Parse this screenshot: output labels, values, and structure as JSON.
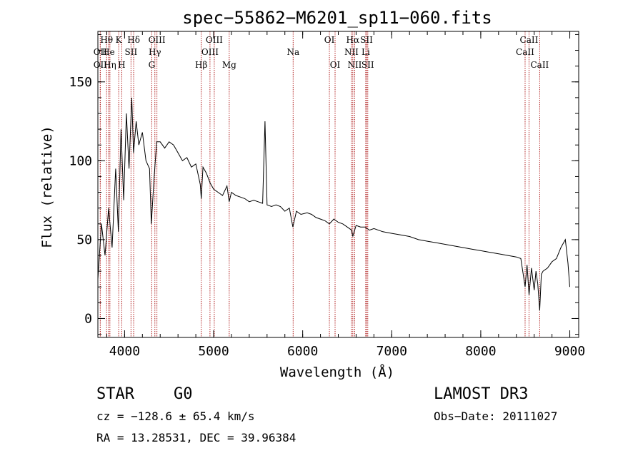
{
  "chart_data": {
    "type": "line",
    "title": "spec−55862−M6201_sp11−060.fits",
    "xlabel": "Wavelength (Å)",
    "ylabel": "Flux (relative)",
    "xlim": [
      3700,
      9100
    ],
    "ylim": [
      -12,
      182
    ],
    "x_ticks": [
      4000,
      5000,
      6000,
      7000,
      8000,
      9000
    ],
    "x_tick_labels": [
      "4000",
      "5000",
      "6000",
      "7000",
      "8000",
      "9000"
    ],
    "y_ticks": [
      0,
      50,
      100,
      150
    ],
    "y_tick_labels": [
      "0",
      "50",
      "100",
      "150"
    ],
    "series": [
      {
        "name": "flux",
        "x": [
          3700,
          3740,
          3780,
          3820,
          3860,
          3900,
          3930,
          3960,
          3990,
          4020,
          4050,
          4080,
          4100,
          4130,
          4160,
          4200,
          4240,
          4280,
          4300,
          4330,
          4360,
          4400,
          4450,
          4500,
          4550,
          4600,
          4650,
          4700,
          4750,
          4800,
          4850,
          4861,
          4880,
          4920,
          4960,
          5000,
          5050,
          5100,
          5150,
          5175,
          5200,
          5250,
          5300,
          5350,
          5400,
          5450,
          5500,
          5550,
          5577,
          5600,
          5650,
          5700,
          5750,
          5800,
          5850,
          5890,
          5930,
          5980,
          6050,
          6100,
          6150,
          6200,
          6250,
          6300,
          6350,
          6400,
          6450,
          6500,
          6550,
          6563,
          6600,
          6650,
          6700,
          6750,
          6800,
          6900,
          7000,
          7100,
          7200,
          7300,
          7400,
          7500,
          7600,
          7700,
          7800,
          7900,
          8000,
          8100,
          8200,
          8300,
          8400,
          8450,
          8498,
          8520,
          8542,
          8570,
          8600,
          8620,
          8640,
          8662,
          8680,
          8700,
          8750,
          8800,
          8850,
          8900,
          8950,
          8980,
          9000
        ],
        "values": [
          25,
          60,
          40,
          70,
          45,
          95,
          55,
          120,
          75,
          130,
          95,
          140,
          105,
          125,
          110,
          118,
          100,
          95,
          60,
          88,
          112,
          112,
          108,
          112,
          110,
          105,
          100,
          102,
          96,
          98,
          85,
          76,
          96,
          92,
          86,
          82,
          80,
          78,
          84,
          74,
          80,
          78,
          77,
          76,
          74,
          75,
          74,
          73,
          125,
          72,
          71,
          72,
          71,
          68,
          70,
          58,
          68,
          66,
          67,
          66,
          64,
          63,
          62,
          60,
          63,
          61,
          60,
          58,
          56,
          52,
          59,
          58,
          58,
          56,
          57,
          55,
          54,
          53,
          52,
          50,
          49,
          48,
          47,
          46,
          45,
          44,
          43,
          42,
          41,
          40,
          39,
          38,
          20,
          34,
          15,
          32,
          18,
          30,
          22,
          5,
          28,
          30,
          32,
          36,
          38,
          45,
          50,
          35,
          20
        ]
      }
    ],
    "lines": [
      {
        "name": "OII",
        "wavelength": 3727,
        "row": 1
      },
      {
        "name": "Hθ",
        "wavelength": 3798,
        "row": 0
      },
      {
        "name": "OII",
        "wavelength": 3727,
        "row": 2
      },
      {
        "name": "He",
        "wavelength": 3820,
        "row": 1
      },
      {
        "name": "Hη",
        "wavelength": 3835,
        "row": 2
      },
      {
        "name": "K",
        "wavelength": 3934,
        "row": 0
      },
      {
        "name": "H",
        "wavelength": 3968,
        "row": 2
      },
      {
        "name": "SII",
        "wavelength": 4072,
        "row": 1
      },
      {
        "name": "Hδ",
        "wavelength": 4102,
        "row": 0
      },
      {
        "name": "OIII",
        "wavelength": 4363,
        "row": 0
      },
      {
        "name": "Hγ",
        "wavelength": 4340,
        "row": 1
      },
      {
        "name": "G",
        "wavelength": 4305,
        "row": 2
      },
      {
        "name": "Hβ",
        "wavelength": 4861,
        "row": 2
      },
      {
        "name": "OIII",
        "wavelength": 5007,
        "row": 0
      },
      {
        "name": "OIII",
        "wavelength": 4959,
        "row": 1
      },
      {
        "name": "Mg",
        "wavelength": 5175,
        "row": 2
      },
      {
        "name": "Na",
        "wavelength": 5893,
        "row": 1
      },
      {
        "name": "OI",
        "wavelength": 6300,
        "row": 0
      },
      {
        "name": "OI",
        "wavelength": 6364,
        "row": 2
      },
      {
        "name": "Hα",
        "wavelength": 6563,
        "row": 0
      },
      {
        "name": "NII",
        "wavelength": 6548,
        "row": 1
      },
      {
        "name": "NII",
        "wavelength": 6584,
        "row": 2
      },
      {
        "name": "SII",
        "wavelength": 6717,
        "row": 0
      },
      {
        "name": "Li",
        "wavelength": 6708,
        "row": 1
      },
      {
        "name": "SII",
        "wavelength": 6731,
        "row": 2
      },
      {
        "name": "CaII",
        "wavelength": 8542,
        "row": 0
      },
      {
        "name": "CaII",
        "wavelength": 8498,
        "row": 1
      },
      {
        "name": "CaII",
        "wavelength": 8662,
        "row": 2
      }
    ],
    "line_color": "#b22222"
  },
  "info": {
    "class_label": "STAR",
    "subclass": "G0",
    "survey": "LAMOST DR3",
    "cz": "cz = −128.6 ± 65.4 km/s",
    "obs_date": "Obs−Date: 20111027",
    "coords": "RA =  13.28531, DEC =  39.96384"
  }
}
